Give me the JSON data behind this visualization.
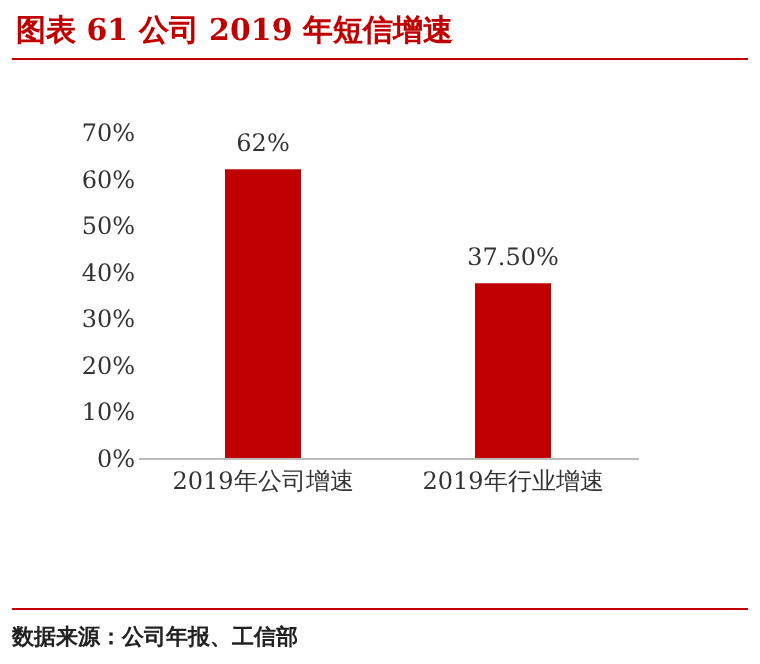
{
  "chart_data": {
    "type": "bar",
    "title": "图表 61 公司 2019 年短信增速",
    "categories": [
      "2019年公司增速",
      "2019年行业增速"
    ],
    "values": [
      62,
      37.5
    ],
    "value_labels": [
      "62%",
      "37.50%"
    ],
    "color": "#c00000",
    "ylim": [
      0,
      70
    ],
    "yticks": [
      {
        "value": 0,
        "label": "0%"
      },
      {
        "value": 10,
        "label": "10%"
      },
      {
        "value": 20,
        "label": "20%"
      },
      {
        "value": 30,
        "label": "30%"
      },
      {
        "value": 40,
        "label": "40%"
      },
      {
        "value": 50,
        "label": "50%"
      },
      {
        "value": 60,
        "label": "60%"
      },
      {
        "value": 70,
        "label": "70%"
      }
    ],
    "grid": false,
    "annotations": [
      "数据来源：公司年报、工信部"
    ]
  }
}
